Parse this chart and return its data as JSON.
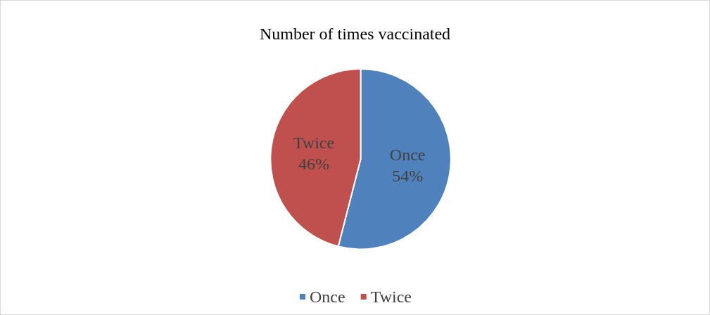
{
  "chart_data": {
    "type": "pie",
    "title": "Number of times vaccinated",
    "categories": [
      "Once",
      "Twice"
    ],
    "values": [
      54,
      46
    ],
    "colors": [
      "#4f81bd",
      "#c0504d"
    ],
    "value_labels": [
      "54%",
      "46%"
    ],
    "legend": "bottom"
  }
}
